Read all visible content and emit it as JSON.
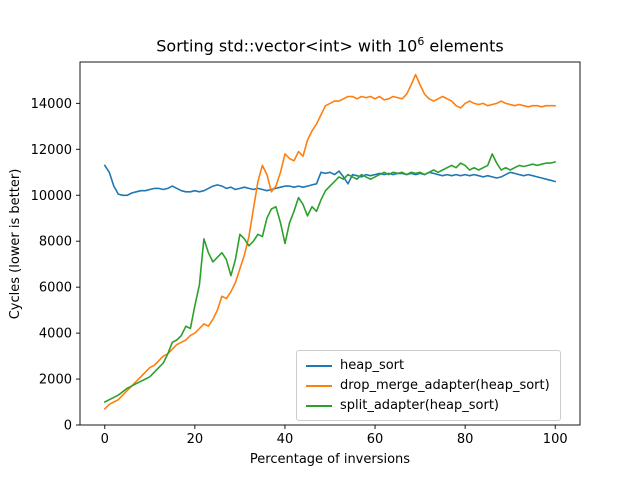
{
  "figure": {
    "title_prefix": "Sorting std::vector<int> with 10",
    "title_exponent": "6",
    "title_suffix": " elements"
  },
  "chart_data": {
    "type": "line",
    "title": "Sorting std::vector<int> with 10^6 elements",
    "xlabel": "Percentage of inversions",
    "ylabel": "Cycles (lower is better)",
    "xlim": [
      -5.5,
      105.5
    ],
    "ylim": [
      0,
      15800
    ],
    "xticks": [
      0,
      20,
      40,
      60,
      80,
      100
    ],
    "yticks": [
      0,
      2000,
      4000,
      6000,
      8000,
      10000,
      12000,
      14000
    ],
    "grid": false,
    "legend_position": "lower right",
    "x": [
      0,
      1,
      2,
      3,
      4,
      5,
      6,
      7,
      8,
      9,
      10,
      11,
      12,
      13,
      14,
      15,
      16,
      17,
      18,
      19,
      20,
      21,
      22,
      23,
      24,
      25,
      26,
      27,
      28,
      29,
      30,
      31,
      32,
      33,
      34,
      35,
      36,
      37,
      38,
      39,
      40,
      41,
      42,
      43,
      44,
      45,
      46,
      47,
      48,
      49,
      50,
      51,
      52,
      53,
      54,
      55,
      56,
      57,
      58,
      59,
      60,
      61,
      62,
      63,
      64,
      65,
      66,
      67,
      68,
      69,
      70,
      71,
      72,
      73,
      74,
      75,
      76,
      77,
      78,
      79,
      80,
      81,
      82,
      83,
      84,
      85,
      86,
      87,
      88,
      89,
      90,
      91,
      92,
      93,
      94,
      95,
      96,
      97,
      98,
      99,
      100
    ],
    "series": [
      {
        "name": "heap_sort",
        "color": "#1f77b4",
        "values": [
          11300,
          11000,
          10400,
          10050,
          10000,
          10000,
          10100,
          10150,
          10200,
          10200,
          10250,
          10300,
          10300,
          10250,
          10300,
          10400,
          10300,
          10200,
          10150,
          10150,
          10200,
          10150,
          10200,
          10300,
          10400,
          10450,
          10400,
          10300,
          10350,
          10250,
          10300,
          10350,
          10300,
          10250,
          10300,
          10250,
          10200,
          10250,
          10300,
          10350,
          10400,
          10400,
          10350,
          10400,
          10350,
          10400,
          10450,
          10500,
          11000,
          10950,
          11000,
          10900,
          11050,
          10800,
          10500,
          10900,
          10850,
          10800,
          10900,
          10850,
          10900,
          10950,
          10900,
          10950,
          10900,
          10950,
          10950,
          10900,
          10950,
          10900,
          10950,
          10900,
          11000,
          10950,
          10900,
          10850,
          10900,
          10850,
          10900,
          10850,
          10900,
          10850,
          10900,
          10850,
          10800,
          10850,
          10800,
          10750,
          10800,
          10900,
          11000,
          10950,
          10900,
          10850,
          10900,
          10850,
          10800,
          10750,
          10700,
          10650,
          10600
        ]
      },
      {
        "name": "drop_merge_adapter(heap_sort)",
        "color": "#ff7f0e",
        "values": [
          700,
          900,
          1000,
          1100,
          1300,
          1500,
          1700,
          1900,
          2100,
          2300,
          2500,
          2600,
          2800,
          3000,
          3100,
          3300,
          3500,
          3600,
          3700,
          3900,
          4000,
          4200,
          4400,
          4300,
          4600,
          5000,
          5600,
          5500,
          5800,
          6200,
          6800,
          7400,
          8200,
          9400,
          10600,
          11300,
          10900,
          10150,
          10400,
          11000,
          11800,
          11600,
          11500,
          11900,
          11700,
          12400,
          12800,
          13100,
          13500,
          13900,
          14000,
          14100,
          14100,
          14200,
          14300,
          14300,
          14200,
          14300,
          14250,
          14300,
          14200,
          14300,
          14150,
          14200,
          14300,
          14250,
          14200,
          14400,
          14800,
          15250,
          14800,
          14400,
          14200,
          14100,
          14200,
          14300,
          14200,
          14100,
          13900,
          13800,
          14000,
          14100,
          14000,
          13950,
          14000,
          13900,
          13950,
          14000,
          14100,
          14000,
          13950,
          13900,
          13950,
          13900,
          13850,
          13900,
          13900,
          13850,
          13900,
          13900,
          13900
        ]
      },
      {
        "name": "split_adapter(heap_sort)",
        "color": "#2ca02c",
        "values": [
          1000,
          1100,
          1200,
          1300,
          1450,
          1600,
          1700,
          1800,
          1900,
          2000,
          2100,
          2300,
          2500,
          2700,
          3100,
          3600,
          3700,
          3900,
          4300,
          4200,
          5200,
          6100,
          8100,
          7500,
          7100,
          7300,
          7500,
          7200,
          6500,
          7200,
          8300,
          8100,
          7800,
          8000,
          8300,
          8200,
          9000,
          9400,
          9500,
          8800,
          7900,
          8800,
          9300,
          9900,
          9600,
          9100,
          9500,
          9300,
          9800,
          10200,
          10400,
          10600,
          10800,
          10700,
          10900,
          10800,
          10700,
          10900,
          10800,
          10700,
          10800,
          10900,
          11000,
          10900,
          11000,
          10950,
          11000,
          10900,
          11000,
          10950,
          11000,
          10900,
          11000,
          11100,
          11000,
          11100,
          11200,
          11300,
          11200,
          11400,
          11300,
          11100,
          11200,
          11100,
          11200,
          11300,
          11800,
          11400,
          11100,
          11200,
          11100,
          11200,
          11300,
          11250,
          11300,
          11350,
          11300,
          11350,
          11400,
          11400,
          11450
        ]
      }
    ]
  }
}
